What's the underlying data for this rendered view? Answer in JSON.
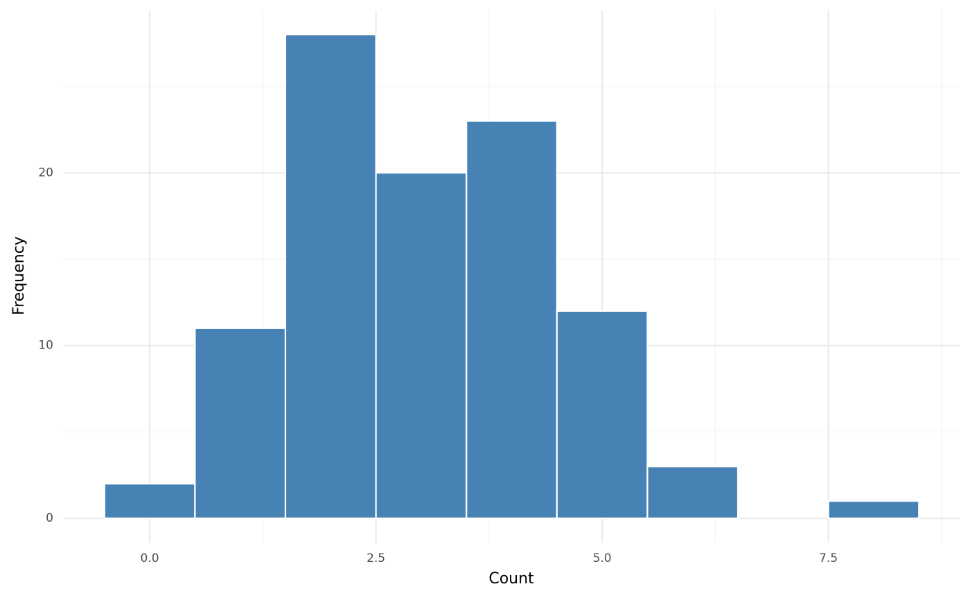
{
  "chart_data": {
    "type": "histogram",
    "x_label": "Count",
    "y_label": "Frequency",
    "bins": [
      -0.5,
      0.5,
      1.5,
      2.5,
      3.5,
      4.5,
      5.5,
      6.5,
      7.5,
      8.5
    ],
    "values": [
      2,
      11,
      28,
      20,
      23,
      12,
      3,
      0,
      1
    ],
    "color": "#4682b4",
    "xlim": [
      -0.95,
      8.95
    ],
    "ylim": [
      -1.4,
      29.4
    ],
    "xticks": [
      {
        "value": 0,
        "label": "0.0"
      },
      {
        "value": 2.5,
        "label": "2.5"
      },
      {
        "value": 5,
        "label": "5.0"
      },
      {
        "value": 7.5,
        "label": "7.5"
      }
    ],
    "yticks": [
      0,
      10,
      20
    ],
    "grid": true
  }
}
